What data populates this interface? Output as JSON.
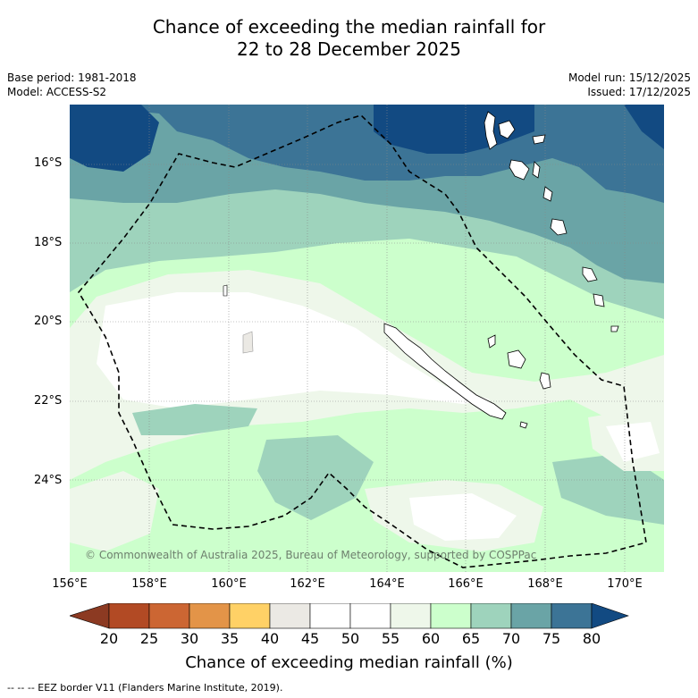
{
  "title": {
    "line1": "Chance of exceeding the median rainfall for",
    "line2": "22 to 28 December 2025"
  },
  "meta": {
    "base_period": "Base period: 1981-2018",
    "model": "Model: ACCESS-S2",
    "model_run": "Model run: 15/12/2025",
    "issued": "Issued: 17/12/2025"
  },
  "axes": {
    "lat_labels": [
      "16°S",
      "18°S",
      "20°S",
      "22°S",
      "24°S"
    ],
    "lon_labels": [
      "156°E",
      "158°E",
      "160°E",
      "162°E",
      "164°E",
      "166°E",
      "168°E",
      "170°E"
    ]
  },
  "copyright": "© Commonwealth of Australia 2025, Bureau of Meteorology, supported by COSPPac",
  "colorbar": {
    "title": "Chance of exceeding median rainfall (%)",
    "ticks": [
      "20",
      "25",
      "30",
      "35",
      "40",
      "45",
      "50",
      "55",
      "60",
      "65",
      "70",
      "75",
      "80"
    ],
    "colors": [
      "#8c3a22",
      "#b24a24",
      "#cc6633",
      "#e39448",
      "#ffd166",
      "#ebe9e4",
      "#ffffff",
      "#ffffff",
      "#eef7ea",
      "#ccffcc",
      "#9ed3bc",
      "#6aa4a6",
      "#3c7496",
      "#124a82"
    ]
  },
  "footnote": "--  --  -- EEZ border V11 (Flanders Marine Institute, 2019).",
  "colors": {
    "ocean_mid": "#ccffcc",
    "land_outline": "#000000"
  }
}
